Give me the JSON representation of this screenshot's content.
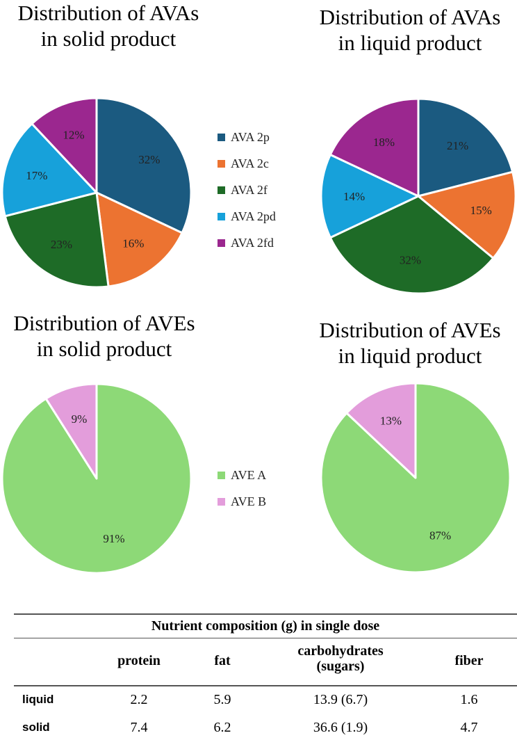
{
  "chart_data": [
    {
      "type": "pie",
      "title": "Distribution of AVAs in solid product",
      "title_lines": [
        "Distribution of AVAs",
        "in solid product"
      ],
      "categories": [
        "AVA 2p",
        "AVA 2c",
        "AVA 2f",
        "AVA 2pd",
        "AVA 2fd"
      ],
      "values": [
        32,
        16,
        23,
        17,
        12
      ],
      "labels": [
        "32%",
        "16%",
        "23%",
        "17%",
        "12%"
      ]
    },
    {
      "type": "pie",
      "title": "Distribution of AVAs in liquid product",
      "title_lines": [
        "Distribution of AVAs",
        "in liquid product"
      ],
      "categories": [
        "AVA 2p",
        "AVA 2c",
        "AVA 2f",
        "AVA 2pd",
        "AVA 2fd"
      ],
      "values": [
        21,
        15,
        32,
        14,
        18
      ],
      "labels": [
        "21%",
        "15%",
        "32%",
        "14%",
        "18%"
      ]
    },
    {
      "type": "pie",
      "title": "Distribution of AVEs in solid product",
      "title_lines": [
        "Distribution of AVEs",
        "in solid product"
      ],
      "categories": [
        "AVE A",
        "AVE B"
      ],
      "values": [
        91,
        9
      ],
      "labels": [
        "91%",
        "9%"
      ]
    },
    {
      "type": "pie",
      "title": "Distribution of AVEs in liquid product",
      "title_lines": [
        "Distribution of AVEs",
        "in liquid product"
      ],
      "categories": [
        "AVE A",
        "AVE B"
      ],
      "values": [
        87,
        13
      ],
      "labels": [
        "87%",
        "13%"
      ]
    },
    {
      "type": "table",
      "title": "Nutrient composition (g) in single dose",
      "columns": [
        "protein",
        "fat",
        "carbohydrates (sugars)",
        "fiber"
      ],
      "rows": [
        {
          "label": "liquid",
          "values": [
            "2.2",
            "5.9",
            "13.9 (6.7)",
            "1.6"
          ]
        },
        {
          "label": "solid",
          "values": [
            "7.4",
            "6.2",
            "36.6 (1.9)",
            "4.7"
          ]
        }
      ]
    }
  ],
  "legends": {
    "ava": [
      {
        "label": "AVA 2p",
        "color": "#1b5a80"
      },
      {
        "label": "AVA 2c",
        "color": "#ec7331"
      },
      {
        "label": "AVA 2f",
        "color": "#1e6b27"
      },
      {
        "label": "AVA 2pd",
        "color": "#17a1da"
      },
      {
        "label": "AVA 2fd",
        "color": "#9b278f"
      }
    ],
    "ave": [
      {
        "label": "AVE A",
        "color": "#8dd977"
      },
      {
        "label": "AVE B",
        "color": "#e39ddb"
      }
    ]
  },
  "table_header": {
    "title": "Nutrient composition (g) in single dose",
    "protein": "protein",
    "fat": "fat",
    "carbs_line1": "carbohydrates",
    "carbs_line2": "(sugars)",
    "fiber": "fiber"
  }
}
